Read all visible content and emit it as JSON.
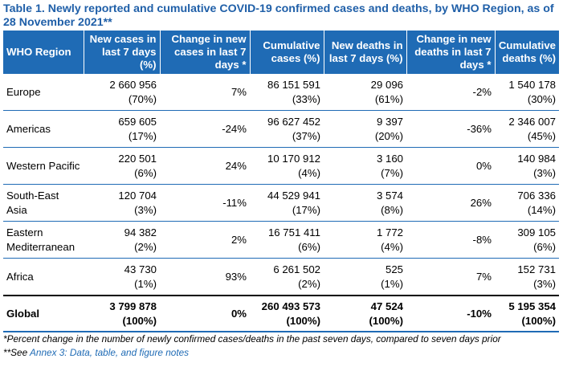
{
  "title": "Table 1. Newly reported and cumulative COVID-19 confirmed cases and deaths, by WHO Region, as of 28 November 2021**",
  "headers": {
    "region": "WHO Region",
    "new_cases": "New cases in last 7 days (%)",
    "change_cases": "Change in new cases in last 7 days *",
    "cum_cases": "Cumulative cases (%)",
    "new_deaths": "New deaths in last 7 days (%)",
    "change_deaths": "Change in new deaths in last 7 days *",
    "cum_deaths": "Cumulative deaths (%)"
  },
  "rows": [
    {
      "region": "Europe",
      "new_cases": "2 660 956",
      "new_cases_pct": "(70%)",
      "change_cases": "7%",
      "cum_cases": "86 151 591",
      "cum_cases_pct": "(33%)",
      "new_deaths": "29 096",
      "new_deaths_pct": "(61%)",
      "change_deaths": "-2%",
      "cum_deaths": "1 540 178",
      "cum_deaths_pct": "(30%)"
    },
    {
      "region": "Americas",
      "new_cases": "659 605",
      "new_cases_pct": "(17%)",
      "change_cases": "-24%",
      "cum_cases": "96 627 452",
      "cum_cases_pct": "(37%)",
      "new_deaths": "9 397",
      "new_deaths_pct": "(20%)",
      "change_deaths": "-36%",
      "cum_deaths": "2 346 007",
      "cum_deaths_pct": "(45%)"
    },
    {
      "region": "Western Pacific",
      "new_cases": "220 501",
      "new_cases_pct": "(6%)",
      "change_cases": "24%",
      "cum_cases": "10 170 912",
      "cum_cases_pct": "(4%)",
      "new_deaths": "3 160",
      "new_deaths_pct": "(7%)",
      "change_deaths": "0%",
      "cum_deaths": "140 984",
      "cum_deaths_pct": "(3%)"
    },
    {
      "region": "South-East Asia",
      "new_cases": "120 704",
      "new_cases_pct": "(3%)",
      "change_cases": "-11%",
      "cum_cases": "44 529 941",
      "cum_cases_pct": "(17%)",
      "new_deaths": "3 574",
      "new_deaths_pct": "(8%)",
      "change_deaths": "26%",
      "cum_deaths": "706 336",
      "cum_deaths_pct": "(14%)"
    },
    {
      "region": "Eastern Mediterranean",
      "new_cases": "94 382",
      "new_cases_pct": "(2%)",
      "change_cases": "2%",
      "cum_cases": "16 751 411",
      "cum_cases_pct": "(6%)",
      "new_deaths": "1 772",
      "new_deaths_pct": "(4%)",
      "change_deaths": "-8%",
      "cum_deaths": "309 105",
      "cum_deaths_pct": "(6%)"
    },
    {
      "region": "Africa",
      "new_cases": "43 730",
      "new_cases_pct": "(1%)",
      "change_cases": "93%",
      "cum_cases": "6 261 502",
      "cum_cases_pct": "(2%)",
      "new_deaths": "525",
      "new_deaths_pct": "(1%)",
      "change_deaths": "7%",
      "cum_deaths": "152 731",
      "cum_deaths_pct": "(3%)"
    }
  ],
  "global": {
    "region": "Global",
    "new_cases": "3 799 878",
    "new_cases_pct": "(100%)",
    "change_cases": "0%",
    "cum_cases": "260 493 573",
    "cum_cases_pct": "(100%)",
    "new_deaths": "47 524",
    "new_deaths_pct": "(100%)",
    "change_deaths": "-10%",
    "cum_deaths": "5 195 354",
    "cum_deaths_pct": "(100%)"
  },
  "notes": {
    "footnote1": "*Percent change in the number of newly confirmed cases/deaths in the past seven days, compared to seven days prior",
    "footnote2_prefix": "**See ",
    "footnote2_link": "Annex 3: Data, table, and figure notes"
  },
  "colors": {
    "header_bg": "#1f6bb5",
    "title": "#1f5fa8",
    "rule": "#1f6bb5"
  }
}
